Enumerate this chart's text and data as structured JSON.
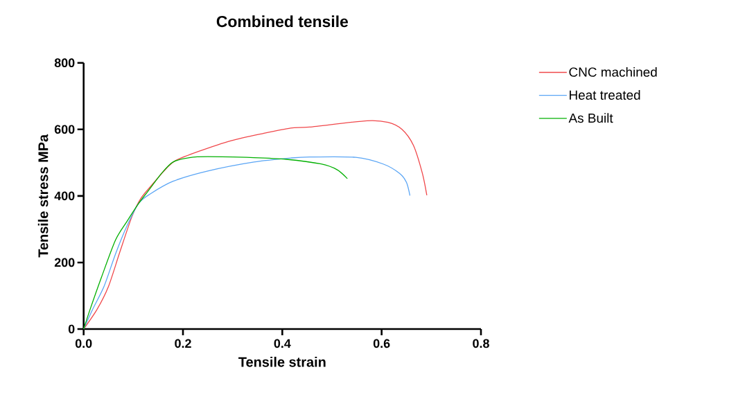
{
  "chart_data": {
    "type": "line",
    "title": "Combined tensile",
    "xlabel": "Tensile strain",
    "ylabel": "Tensile stress MPa",
    "xlim": [
      0,
      0.8
    ],
    "ylim": [
      0,
      800
    ],
    "xticks": [
      {
        "value": 0,
        "label": "0.0"
      },
      0.2,
      0.4,
      0.6,
      0.8
    ],
    "yticks": [
      0,
      200,
      400,
      600,
      800
    ],
    "legend": "right",
    "marker": "none",
    "line_style": "solid",
    "series": [
      {
        "name": "CNC machined",
        "color": "#f0474a",
        "x": [
          0,
          0.027,
          0.05,
          0.073,
          0.097,
          0.115,
          0.138,
          0.166,
          0.185,
          0.232,
          0.297,
          0.362,
          0.417,
          0.455,
          0.571,
          0.613,
          0.641,
          0.664,
          0.682,
          0.691
        ],
        "values": [
          0,
          59,
          128,
          232,
          337,
          392,
          434,
          482,
          506,
          534,
          566,
          588,
          604,
          607,
          626,
          621,
          600,
          552,
          468,
          402
        ]
      },
      {
        "name": "Heat treated",
        "color": "#5aa5f5",
        "x": [
          0,
          0.018,
          0.041,
          0.064,
          0.087,
          0.111,
          0.134,
          0.18,
          0.25,
          0.343,
          0.417,
          0.455,
          0.548,
          0.603,
          0.636,
          0.65,
          0.657
        ],
        "values": [
          0,
          59,
          128,
          225,
          309,
          378,
          406,
          444,
          475,
          502,
          514,
          517,
          516,
          496,
          468,
          441,
          401
        ]
      },
      {
        "name": "As Built",
        "color": "#00b000",
        "x": [
          0,
          0.013,
          0.036,
          0.064,
          0.087,
          0.111,
          0.129,
          0.157,
          0.18,
          0.213,
          0.25,
          0.343,
          0.408,
          0.478,
          0.51,
          0.531
        ],
        "values": [
          0,
          59,
          156,
          267,
          323,
          378,
          413,
          468,
          502,
          515,
          518,
          515,
          510,
          496,
          479,
          452
        ]
      }
    ]
  }
}
